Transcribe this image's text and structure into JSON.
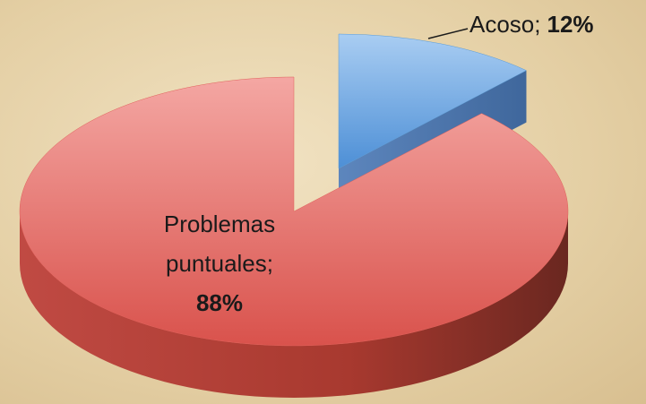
{
  "chart_data": {
    "type": "pie",
    "categories": [
      "Acoso;",
      "Problemas puntuales;"
    ],
    "values": [
      12,
      88
    ],
    "value_labels": [
      "12%",
      "88%"
    ],
    "colors": [
      "#5b9bd5",
      "#e0605a"
    ]
  }
}
